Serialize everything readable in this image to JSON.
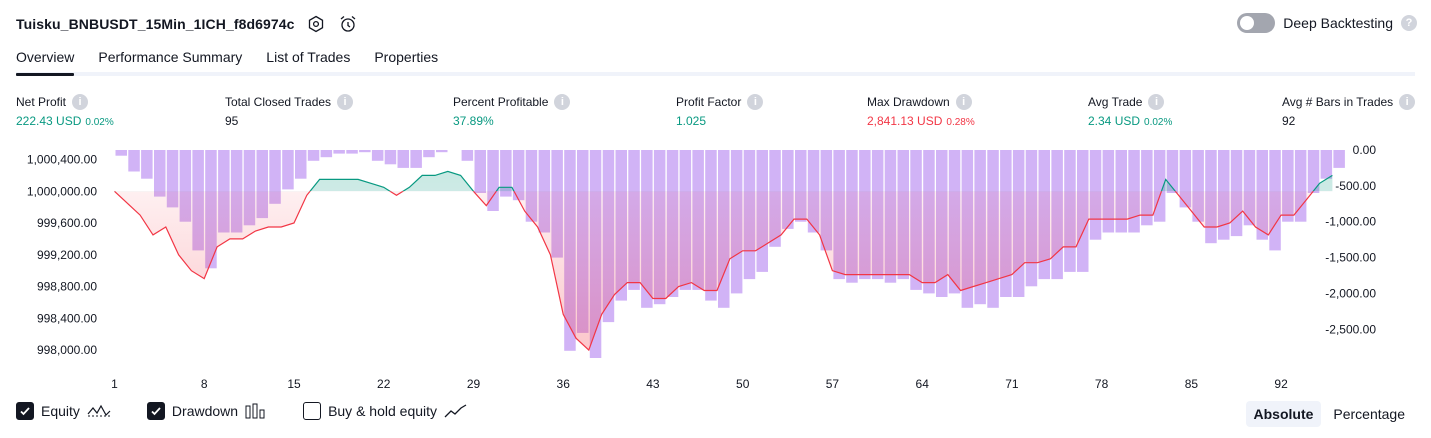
{
  "header": {
    "strategy_name": "Tuisku_BNBUSDT_15Min_1ICH_f8d6974c",
    "settings_icon": "settings-icon",
    "alert_icon": "add-alert-icon"
  },
  "deep_backtesting": {
    "label": "Deep Backtesting",
    "enabled": false,
    "help": "?"
  },
  "tabs": [
    {
      "label": "Overview",
      "active": true
    },
    {
      "label": "Performance Summary",
      "active": false
    },
    {
      "label": "List of Trades",
      "active": false
    },
    {
      "label": "Properties",
      "active": false
    }
  ],
  "metrics": [
    {
      "label": "Net Profit",
      "value": "222.43 USD",
      "pct": "0.02%",
      "color": "#089981"
    },
    {
      "label": "Total Closed Trades",
      "value": "95",
      "pct": "",
      "color": "#131722"
    },
    {
      "label": "Percent Profitable",
      "value": "37.89%",
      "pct": "",
      "color": "#089981"
    },
    {
      "label": "Profit Factor",
      "value": "1.025",
      "pct": "",
      "color": "#089981"
    },
    {
      "label": "Max Drawdown",
      "value": "2,841.13 USD",
      "pct": "0.28%",
      "color": "#f23645"
    },
    {
      "label": "Avg Trade",
      "value": "2.34 USD",
      "pct": "0.02%",
      "color": "#089981"
    },
    {
      "label": "Avg # Bars in Trades",
      "value": "92",
      "pct": "",
      "color": "#131722"
    }
  ],
  "chart_data": {
    "type": "line",
    "left_axis": {
      "ticks": [
        "1,000,400.00",
        "1,000,000.00",
        "999,600.00",
        "999,200.00",
        "998,800.00",
        "998,400.00",
        "998,000.00"
      ],
      "tick_values": [
        1000400,
        1000000,
        999600,
        999200,
        998800,
        998400,
        998000
      ],
      "ylim": [
        997900,
        1000520
      ]
    },
    "right_axis": {
      "ticks": [
        "0.00",
        "-500.00",
        "-1,000.00",
        "-1,500.00",
        "-2,000.00",
        "-2,500.00"
      ],
      "tick_values": [
        0,
        -500,
        -1000,
        -1500,
        -2000,
        -2500
      ],
      "ylim": [
        -2900,
        0
      ]
    },
    "x_ticks": [
      "1",
      "8",
      "15",
      "22",
      "29",
      "36",
      "43",
      "50",
      "57",
      "64",
      "71",
      "78",
      "85",
      "92"
    ],
    "baseline": 1000000,
    "series": [
      {
        "name": "Equity",
        "color_up": "#089981",
        "color_down": "#f23645",
        "x": [
          1,
          2,
          3,
          4,
          5,
          6,
          7,
          8,
          9,
          10,
          11,
          12,
          13,
          14,
          15,
          16,
          17,
          18,
          19,
          20,
          21,
          22,
          23,
          24,
          25,
          26,
          27,
          28,
          29,
          30,
          31,
          32,
          33,
          34,
          35,
          36,
          37,
          38,
          39,
          40,
          41,
          42,
          43,
          44,
          45,
          46,
          47,
          48,
          49,
          50,
          51,
          52,
          53,
          54,
          55,
          56,
          57,
          58,
          59,
          60,
          61,
          62,
          63,
          64,
          65,
          66,
          67,
          68,
          69,
          70,
          71,
          72,
          73,
          74,
          75,
          76,
          77,
          78,
          79,
          80,
          81,
          82,
          83,
          84,
          85,
          86,
          87,
          88,
          89,
          90,
          91,
          92,
          93,
          94,
          95,
          96
        ],
        "values": [
          1000000,
          999850,
          999700,
          999450,
          999550,
          999200,
          999000,
          998900,
          999300,
          999400,
          999400,
          999500,
          999550,
          999550,
          999600,
          999950,
          1000150,
          1000150,
          1000150,
          1000150,
          1000100,
          1000050,
          999950,
          1000050,
          1000200,
          1000200,
          1000250,
          1000200,
          1000000,
          999820,
          1000050,
          1000050,
          999750,
          999550,
          999200,
          998450,
          998150,
          998000,
          998450,
          998700,
          998850,
          998850,
          998650,
          998650,
          998800,
          998850,
          998750,
          998750,
          999150,
          999250,
          999250,
          999350,
          999450,
          999650,
          999650,
          999450,
          999000,
          998950,
          998950,
          998950,
          998950,
          998950,
          998950,
          998850,
          998850,
          998950,
          998750,
          998800,
          998850,
          998900,
          998950,
          999100,
          999100,
          999150,
          999300,
          999300,
          999650,
          999650,
          999650,
          999650,
          999700,
          999700,
          1000150,
          999950,
          999750,
          999550,
          999550,
          999600,
          999750,
          999550,
          999450,
          999700,
          999700,
          999900,
          1000100,
          1000200
        ]
      },
      {
        "name": "Drawdown",
        "color": "#c9a6f5",
        "x": [
          1,
          2,
          3,
          4,
          5,
          6,
          7,
          8,
          9,
          10,
          11,
          12,
          13,
          14,
          15,
          16,
          17,
          18,
          19,
          20,
          21,
          22,
          23,
          24,
          25,
          26,
          27,
          28,
          29,
          30,
          31,
          32,
          33,
          34,
          35,
          36,
          37,
          38,
          39,
          40,
          41,
          42,
          43,
          44,
          45,
          46,
          47,
          48,
          49,
          50,
          51,
          52,
          53,
          54,
          55,
          56,
          57,
          58,
          59,
          60,
          61,
          62,
          63,
          64,
          65,
          66,
          67,
          68,
          69,
          70,
          71,
          72,
          73,
          74,
          75,
          76,
          77,
          78,
          79,
          80,
          81,
          82,
          83,
          84,
          85,
          86,
          87,
          88,
          89,
          90,
          91,
          92,
          93,
          94,
          95,
          96
        ],
        "values": [
          -80,
          -300,
          -400,
          -650,
          -800,
          -1000,
          -1400,
          -1650,
          -1150,
          -1150,
          -1050,
          -950,
          -750,
          -550,
          -400,
          -150,
          -100,
          -50,
          -50,
          -30,
          -150,
          -200,
          -250,
          -250,
          -100,
          -30,
          0,
          -150,
          -600,
          -850,
          -650,
          -700,
          -1000,
          -1150,
          -1500,
          -2800,
          -2550,
          -2900,
          -2400,
          -2100,
          -1950,
          -2200,
          -2150,
          -2050,
          -1950,
          -1950,
          -2100,
          -2200,
          -2000,
          -1800,
          -1700,
          -1350,
          -1100,
          -1000,
          -1150,
          -1400,
          -1800,
          -1850,
          -1800,
          -1800,
          -1850,
          -1800,
          -1950,
          -2000,
          -2050,
          -2000,
          -2200,
          -2150,
          -2200,
          -2050,
          -2050,
          -1900,
          -1800,
          -1800,
          -1700,
          -1700,
          -1250,
          -1150,
          -1150,
          -1150,
          -1050,
          -1000,
          -600,
          -800,
          -1000,
          -1300,
          -1250,
          -1200,
          -1050,
          -1250,
          -1400,
          -1000,
          -1000,
          -600,
          -400,
          -250
        ]
      }
    ]
  },
  "legend": {
    "equity": {
      "label": "Equity",
      "checked": true
    },
    "drawdown": {
      "label": "Drawdown",
      "checked": true
    },
    "buy_hold": {
      "label": "Buy & hold equity",
      "checked": false
    }
  },
  "modes": [
    {
      "label": "Absolute",
      "active": true
    },
    {
      "label": "Percentage",
      "active": false
    }
  ]
}
